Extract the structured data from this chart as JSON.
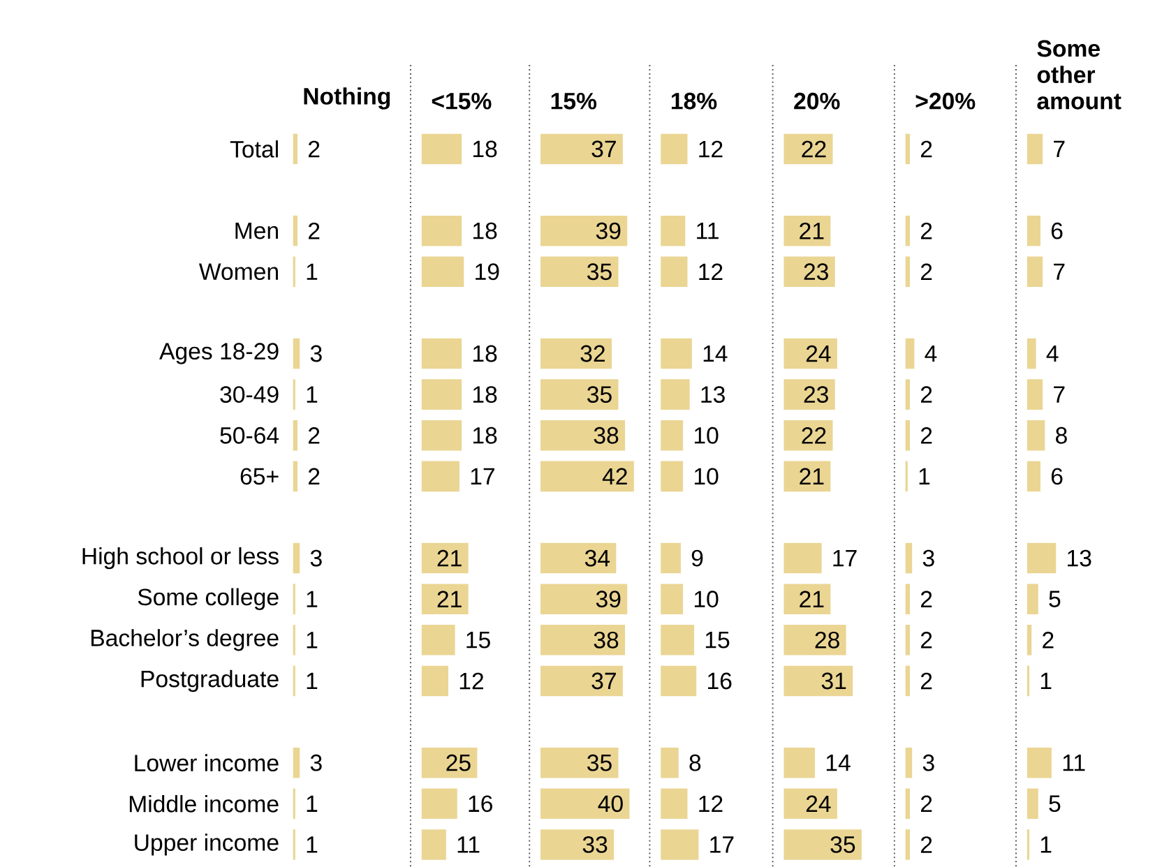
{
  "chart_data": [
    {
      "type": "bar",
      "orientation": "horizontal",
      "title": "Nothing",
      "tick_labels": "y",
      "data_labels": true,
      "color": "#ead593",
      "categories": [
        "Total",
        null,
        "Men",
        "Women",
        null,
        "Ages 18-29",
        "30-49",
        "50-64",
        "65+",
        null,
        "High school or less",
        "Some college",
        "Bachelor’s degree",
        "Postgraduate",
        null,
        "Lower income",
        "Middle income",
        "Upper income"
      ],
      "values": [
        2,
        null,
        2,
        1,
        null,
        3,
        1,
        2,
        2,
        null,
        3,
        1,
        1,
        1,
        null,
        3,
        1,
        1
      ]
    },
    {
      "type": "bar",
      "orientation": "horizontal",
      "title": "<15%",
      "tick_labels": false,
      "data_labels": true,
      "color": "#ead593",
      "categories": [
        null,
        null,
        null,
        null,
        null,
        null,
        null,
        null,
        null,
        null,
        null,
        null,
        null,
        null,
        null,
        null,
        null,
        null
      ],
      "values": [
        18,
        null,
        18,
        19,
        null,
        18,
        18,
        18,
        17,
        null,
        21,
        21,
        15,
        12,
        null,
        25,
        16,
        11
      ]
    },
    {
      "type": "bar",
      "orientation": "horizontal",
      "title": "15%",
      "tick_labels": false,
      "data_labels": true,
      "color": "#ead593",
      "categories": [
        null,
        null,
        null,
        null,
        null,
        null,
        null,
        null,
        null,
        null,
        null,
        null,
        null,
        null,
        null,
        null,
        null,
        null
      ],
      "values": [
        37,
        null,
        39,
        35,
        null,
        32,
        35,
        38,
        42,
        null,
        34,
        39,
        38,
        37,
        null,
        35,
        40,
        33
      ]
    },
    {
      "type": "bar",
      "orientation": "horizontal",
      "title": "18%",
      "tick_labels": false,
      "data_labels": true,
      "color": "#ead593",
      "categories": [
        null,
        null,
        null,
        null,
        null,
        null,
        null,
        null,
        null,
        null,
        null,
        null,
        null,
        null,
        null,
        null,
        null,
        null
      ],
      "values": [
        12,
        null,
        11,
        12,
        null,
        14,
        13,
        10,
        10,
        null,
        9,
        10,
        15,
        16,
        null,
        8,
        12,
        17
      ]
    },
    {
      "type": "bar",
      "orientation": "horizontal",
      "title": "20%",
      "tick_labels": false,
      "data_labels": true,
      "color": "#ead593",
      "categories": [
        null,
        null,
        null,
        null,
        null,
        null,
        null,
        null,
        null,
        null,
        null,
        null,
        null,
        null,
        null,
        null,
        null,
        null
      ],
      "values": [
        22,
        null,
        21,
        23,
        null,
        24,
        23,
        22,
        21,
        null,
        17,
        21,
        28,
        31,
        null,
        14,
        24,
        35
      ]
    },
    {
      "type": "bar",
      "orientation": "horizontal",
      "title": ">20%",
      "tick_labels": false,
      "data_labels": true,
      "color": "#ead593",
      "categories": [
        null,
        null,
        null,
        null,
        null,
        null,
        null,
        null,
        null,
        null,
        null,
        null,
        null,
        null,
        null,
        null,
        null,
        null
      ],
      "values": [
        2,
        null,
        2,
        2,
        null,
        4,
        2,
        2,
        1,
        null,
        3,
        2,
        2,
        2,
        null,
        3,
        2,
        2
      ]
    },
    {
      "type": "bar",
      "orientation": "horizontal",
      "title": "Some other amount",
      "tick_labels": false,
      "data_labels": true,
      "color": "#ead593",
      "categories": [
        null,
        null,
        null,
        null,
        null,
        null,
        null,
        null,
        null,
        null,
        null,
        null,
        null,
        null,
        null,
        null,
        null,
        null
      ],
      "values": [
        7,
        null,
        6,
        7,
        null,
        4,
        7,
        8,
        6,
        null,
        13,
        5,
        2,
        1,
        null,
        11,
        5,
        1
      ]
    }
  ]
}
